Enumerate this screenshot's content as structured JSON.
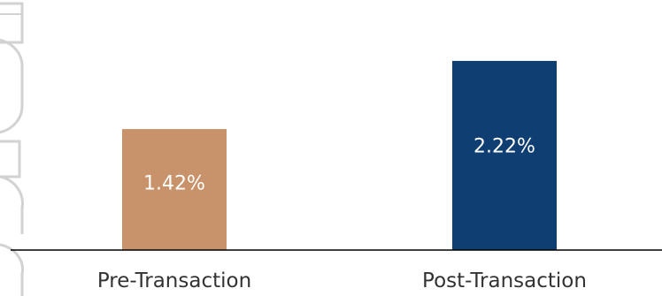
{
  "chart_data": {
    "type": "bar",
    "categories": [
      "Pre-Transaction",
      "Post-Transaction"
    ],
    "values": [
      1.42,
      2.22
    ],
    "data_labels": [
      "1.42%",
      "2.22%"
    ],
    "colors": [
      "#C8936A",
      "#0F3E73"
    ],
    "label_color": "#333333",
    "data_label_color": "#FFFFFF",
    "axis_color": "#000000",
    "watermark_color": "#D2D2D2",
    "ylim": [
      0,
      2.8
    ],
    "grid": false,
    "legend": "none",
    "title": "",
    "xlabel": "",
    "ylabel": ""
  }
}
